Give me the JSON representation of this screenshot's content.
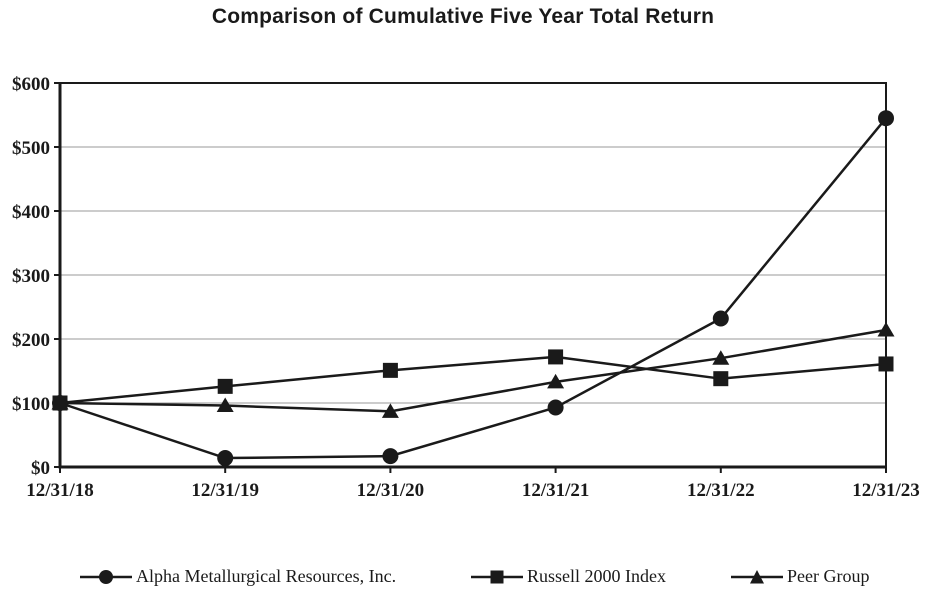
{
  "chart_data": {
    "type": "line",
    "title": "Comparison of Cumulative Five Year Total Return",
    "categories": [
      "12/31/18",
      "12/31/19",
      "12/31/20",
      "12/31/21",
      "12/31/22",
      "12/31/23"
    ],
    "series": [
      {
        "name": "Alpha Metallurgical Resources, Inc.",
        "marker": "circle",
        "values": [
          100,
          14,
          17,
          93,
          232,
          545
        ]
      },
      {
        "name": "Russell 2000 Index",
        "marker": "square",
        "values": [
          100,
          126,
          151,
          172,
          138,
          161
        ]
      },
      {
        "name": "Peer Group",
        "marker": "triangle",
        "values": [
          100,
          96,
          87,
          133,
          170,
          214
        ]
      }
    ],
    "xlabel": "",
    "ylabel": "",
    "ylim": [
      0,
      600
    ],
    "y_tick_step": 100,
    "y_tick_labels": [
      "$0",
      "$100",
      "$200",
      "$300",
      "$400",
      "$500",
      "$600"
    ],
    "grid": "horizontal",
    "legend_position": "bottom",
    "colors": {
      "line": "#1a1a1a",
      "grid": "#999999",
      "text": "#1a1a1a",
      "background": "#ffffff"
    }
  }
}
